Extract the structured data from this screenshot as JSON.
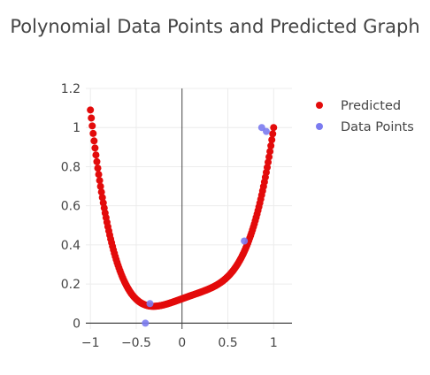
{
  "colors": {
    "predicted": "#e30b0b",
    "data_points": "#7b7bf0",
    "grid": "#ececec",
    "zero_line": "#444444",
    "text": "#444444"
  },
  "chart_data": {
    "type": "scatter",
    "title": "Polynomial Data Points and Predicted Graph",
    "xlabel": "",
    "ylabel": "",
    "xlim": [
      -1.05,
      1.2
    ],
    "ylim": [
      -0.03,
      1.2
    ],
    "x_ticks": [
      -1,
      -0.5,
      0,
      0.5,
      1
    ],
    "x_tick_labels": [
      "−1",
      "−0.5",
      "0",
      "0.5",
      "1"
    ],
    "y_ticks": [
      0,
      0.2,
      0.4,
      0.6,
      0.8,
      1,
      1.2
    ],
    "y_tick_labels": [
      "0",
      "0.2",
      "0.4",
      "0.6",
      "0.8",
      "1",
      "1.2"
    ],
    "grid": true,
    "legend_position": "top-right",
    "series": [
      {
        "name": "Predicted",
        "color": "#e30b0b",
        "x_range": [
          -1,
          1
        ],
        "polynomial_coefficients": [
          0.1245,
          0.1695,
          -0.0095,
          -0.2145,
          0.93
        ],
        "sample_count": 200
      },
      {
        "name": "Data Points",
        "color": "#7b7bf0",
        "x": [
          -0.4,
          -0.35,
          0.68,
          0.87,
          0.92
        ],
        "y": [
          0.0,
          0.1,
          0.42,
          1.0,
          0.98
        ]
      }
    ]
  }
}
